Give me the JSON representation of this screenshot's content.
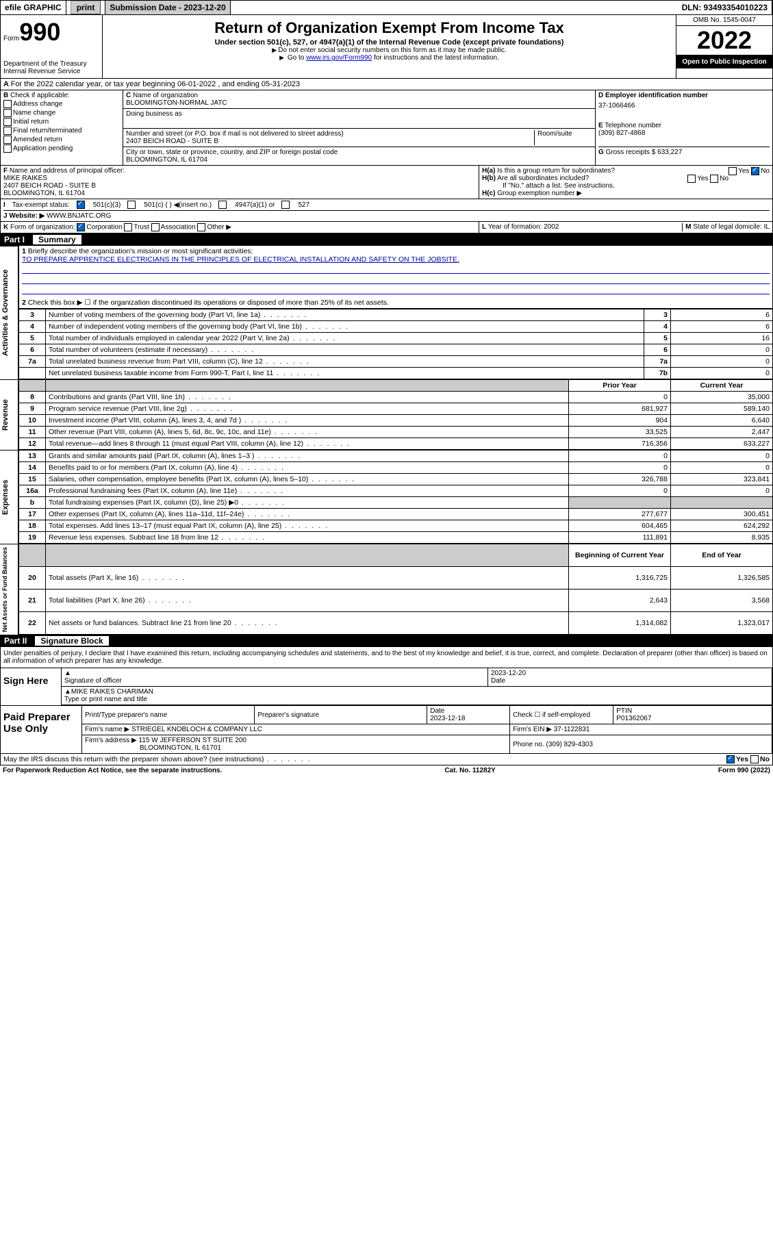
{
  "topbar": {
    "efile": "efile GRAPHIC",
    "print": "print",
    "subdate_label": "Submission Date - 2023-12-20",
    "dln": "DLN: 93493354010223"
  },
  "header": {
    "form_label": "Form",
    "form_no": "990",
    "dept": "Department of the Treasury",
    "irs": "Internal Revenue Service",
    "title": "Return of Organization Exempt From Income Tax",
    "sub1": "Under section 501(c), 527, or 4947(a)(1) of the Internal Revenue Code (except private foundations)",
    "sub2": "Do not enter social security numbers on this form as it may be made public.",
    "sub3_pre": "Go to ",
    "sub3_link": "www.irs.gov/Form990",
    "sub3_post": " for instructions and the latest information.",
    "omb": "OMB No. 1545-0047",
    "year": "2022",
    "open": "Open to Public Inspection"
  },
  "A": {
    "text": "For the 2022 calendar year, or tax year beginning 06-01-2022   , and ending 05-31-2023"
  },
  "B": {
    "label": "Check if applicable:",
    "opts": [
      "Address change",
      "Name change",
      "Initial return",
      "Final return/terminated",
      "Amended return",
      "Application pending"
    ]
  },
  "C": {
    "name_label": "Name of organization",
    "name": "BLOOMINGTON-NORMAL JATC",
    "dba_label": "Doing business as",
    "addr_label": "Number and street (or P.O. box if mail is not delivered to street address)",
    "room": "Room/suite",
    "addr": "2407 BEICH ROAD - SUITE B",
    "city_label": "City or town, state or province, country, and ZIP or foreign postal code",
    "city": "BLOOMINGTON, IL  61704"
  },
  "D": {
    "label": "Employer identification number",
    "ein": "37-1066466"
  },
  "E": {
    "label": "Telephone number",
    "val": "(309) 827-4868"
  },
  "G": {
    "label": "Gross receipts $",
    "val": "633,227"
  },
  "F": {
    "label": "Name and address of principal officer:",
    "name": "MIKE RAIKES",
    "addr1": "2407 BEICH ROAD - SUITE B",
    "addr2": "BLOOMINGTON, IL  61704"
  },
  "H": {
    "a": "Is this a group return for subordinates?",
    "b": "Are all subordinates included?",
    "bnote": "If \"No,\" attach a list. See instructions.",
    "c": "Group exemption number ▶",
    "yes": "Yes",
    "no": "No"
  },
  "I": {
    "label": "Tax-exempt status:",
    "opt1": "501(c)(3)",
    "opt2": "501(c) (  ) ◀(insert no.)",
    "opt3": "4947(a)(1) or",
    "opt4": "527"
  },
  "J": {
    "label": "Website: ▶",
    "val": "WWW.BNJATC.ORG"
  },
  "K": {
    "label": "Form of organization:",
    "opts": [
      "Corporation",
      "Trust",
      "Association",
      "Other ▶"
    ]
  },
  "L": {
    "label": "Year of formation:",
    "val": "2002"
  },
  "M": {
    "label": "State of legal domicile:",
    "val": "IL"
  },
  "part1": {
    "label": "Part I",
    "title": "Summary",
    "mission_label": "Briefly describe the organization's mission or most significant activities:",
    "mission": "TO PREPARE APPRENTICE ELECTRICIANS IN THE PRINCIPLES OF ELECTRICAL INSTALLATION AND SAFETY ON THE JOBSITE.",
    "line2": "Check this box ▶ ☐ if the organization discontinued its operations or disposed of more than 25% of its net assets."
  },
  "vtabs": {
    "gov": "Activities & Governance",
    "rev": "Revenue",
    "exp": "Expenses",
    "net": "Net Assets or Fund Balances"
  },
  "gov_lines": [
    {
      "n": "3",
      "text": "Number of voting members of the governing body (Part VI, line 1a)",
      "box": "3",
      "v": "6"
    },
    {
      "n": "4",
      "text": "Number of independent voting members of the governing body (Part VI, line 1b)",
      "box": "4",
      "v": "6"
    },
    {
      "n": "5",
      "text": "Total number of individuals employed in calendar year 2022 (Part V, line 2a)",
      "box": "5",
      "v": "16"
    },
    {
      "n": "6",
      "text": "Total number of volunteers (estimate if necessary)",
      "box": "6",
      "v": "0"
    },
    {
      "n": "7a",
      "text": "Total unrelated business revenue from Part VIII, column (C), line 12",
      "box": "7a",
      "v": "0"
    },
    {
      "n": "",
      "text": "Net unrelated business taxable income from Form 990-T, Part I, line 11",
      "box": "7b",
      "v": "0"
    }
  ],
  "cols": {
    "prior": "Prior Year",
    "current": "Current Year",
    "boy": "Beginning of Current Year",
    "eoy": "End of Year"
  },
  "rev_lines": [
    {
      "n": "8",
      "text": "Contributions and grants (Part VIII, line 1h)",
      "p": "0",
      "c": "35,000"
    },
    {
      "n": "9",
      "text": "Program service revenue (Part VIII, line 2g)",
      "p": "681,927",
      "c": "589,140"
    },
    {
      "n": "10",
      "text": "Investment income (Part VIII, column (A), lines 3, 4, and 7d )",
      "p": "904",
      "c": "6,640"
    },
    {
      "n": "11",
      "text": "Other revenue (Part VIII, column (A), lines 5, 6d, 8c, 9c, 10c, and 11e)",
      "p": "33,525",
      "c": "2,447"
    },
    {
      "n": "12",
      "text": "Total revenue—add lines 8 through 11 (must equal Part VIII, column (A), line 12)",
      "p": "716,356",
      "c": "633,227"
    }
  ],
  "exp_lines": [
    {
      "n": "13",
      "text": "Grants and similar amounts paid (Part IX, column (A), lines 1–3 )",
      "p": "0",
      "c": "0"
    },
    {
      "n": "14",
      "text": "Benefits paid to or for members (Part IX, column (A), line 4)",
      "p": "0",
      "c": "0"
    },
    {
      "n": "15",
      "text": "Salaries, other compensation, employee benefits (Part IX, column (A), lines 5–10)",
      "p": "326,788",
      "c": "323,841"
    },
    {
      "n": "16a",
      "text": "Professional fundraising fees (Part IX, column (A), line 11e)",
      "p": "0",
      "c": "0"
    },
    {
      "n": "b",
      "text": "Total fundraising expenses (Part IX, column (D), line 25) ▶0",
      "p": "",
      "c": "",
      "shade": true
    },
    {
      "n": "17",
      "text": "Other expenses (Part IX, column (A), lines 11a–11d, 11f–24e)",
      "p": "277,677",
      "c": "300,451"
    },
    {
      "n": "18",
      "text": "Total expenses. Add lines 13–17 (must equal Part IX, column (A), line 25)",
      "p": "604,465",
      "c": "624,292"
    },
    {
      "n": "19",
      "text": "Revenue less expenses. Subtract line 18 from line 12",
      "p": "111,891",
      "c": "8,935"
    }
  ],
  "net_lines": [
    {
      "n": "20",
      "text": "Total assets (Part X, line 16)",
      "p": "1,316,725",
      "c": "1,326,585"
    },
    {
      "n": "21",
      "text": "Total liabilities (Part X, line 26)",
      "p": "2,643",
      "c": "3,568"
    },
    {
      "n": "22",
      "text": "Net assets or fund balances. Subtract line 21 from line 20",
      "p": "1,314,082",
      "c": "1,323,017"
    }
  ],
  "part2": {
    "label": "Part II",
    "title": "Signature Block",
    "penalties": "Under penalties of perjury, I declare that I have examined this return, including accompanying schedules and statements, and to the best of my knowledge and belief, it is true, correct, and complete. Declaration of preparer (other than officer) is based on all information of which preparer has any knowledge."
  },
  "sign": {
    "label": "Sign Here",
    "sig_of": "Signature of officer",
    "date": "Date",
    "date_val": "2023-12-20",
    "name": "MIKE RAIKES CHARIMAN",
    "name_label": "Type or print name and title"
  },
  "paid": {
    "label": "Paid Preparer Use Only",
    "h1": "Print/Type preparer's name",
    "h2": "Preparer's signature",
    "h3": "Date",
    "h3v": "2023-12-18",
    "h4": "Check ☐ if self-employed",
    "h5": "PTIN",
    "h5v": "P01362067",
    "firm_name_l": "Firm's name   ▶",
    "firm_name": "STRIEGEL KNOBLOCH & COMPANY LLC",
    "firm_ein_l": "Firm's EIN ▶",
    "firm_ein": "37-1122831",
    "firm_addr_l": "Firm's address ▶",
    "firm_addr": "115 W JEFFERSON ST SUITE 200",
    "firm_city": "BLOOMINGTON, IL  61701",
    "phone_l": "Phone no.",
    "phone": "(309) 829-4303"
  },
  "discuss": {
    "text": "May the IRS discuss this return with the preparer shown above? (see instructions)",
    "yes": "Yes",
    "no": "No"
  },
  "footer": {
    "l": "For Paperwork Reduction Act Notice, see the separate instructions.",
    "c": "Cat. No. 11282Y",
    "r": "Form 990 (2022)"
  }
}
